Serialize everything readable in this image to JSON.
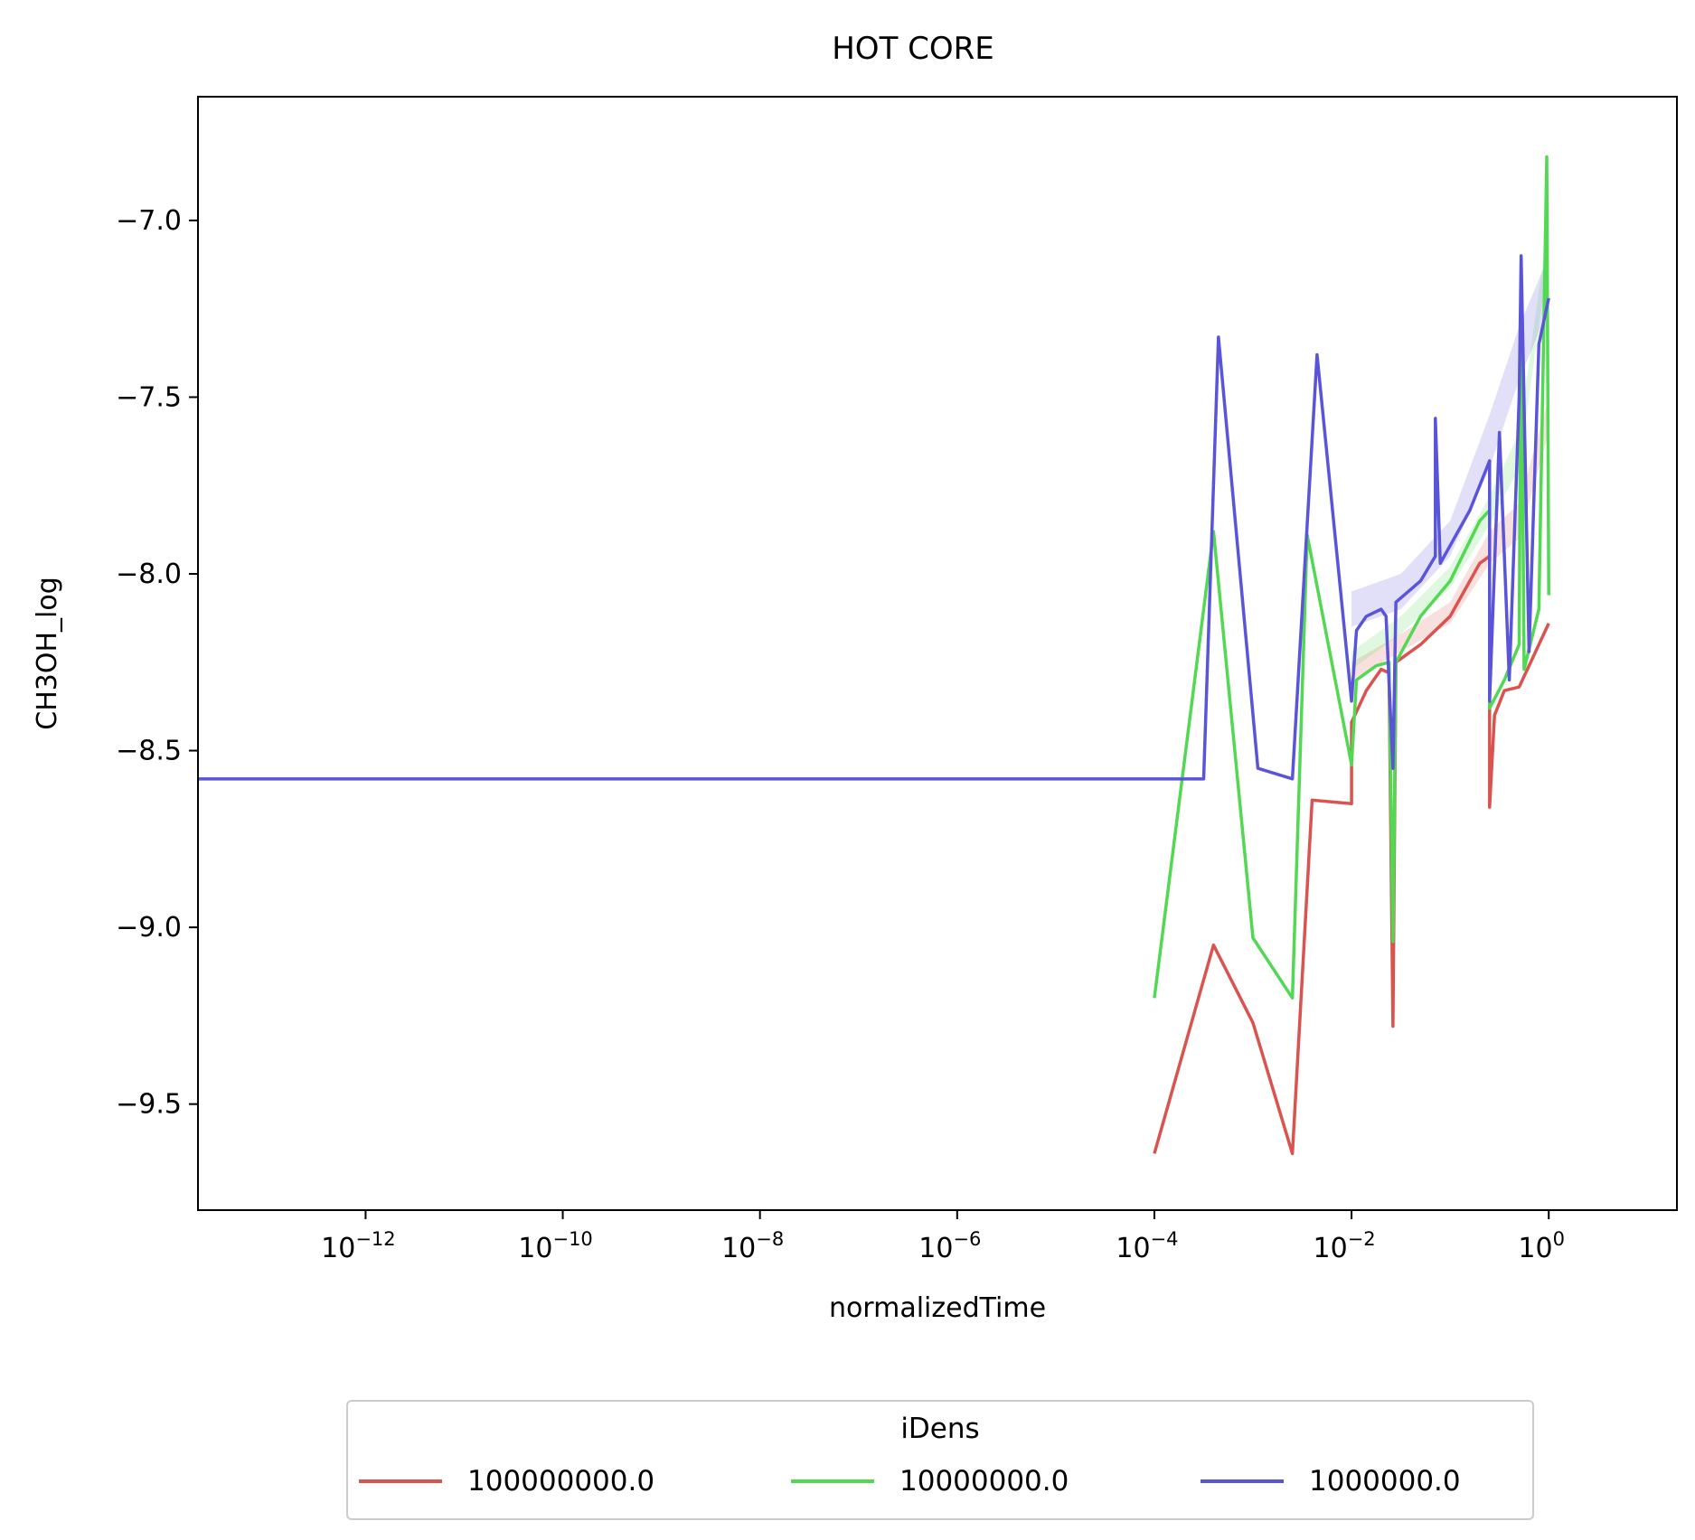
{
  "chart_data": {
    "type": "line",
    "title": "HOT CORE",
    "xlabel": "normalizedTime",
    "ylabel": "CH3OH_log",
    "xscale": "log",
    "xlim_exp": [
      -13.7,
      1.3
    ],
    "ylim": [
      -9.8,
      -6.65
    ],
    "xticks": [
      {
        "exp": -12,
        "base": "10",
        "sup": "−12"
      },
      {
        "exp": -10,
        "base": "10",
        "sup": "−10"
      },
      {
        "exp": -8,
        "base": "10",
        "sup": "−8"
      },
      {
        "exp": -6,
        "base": "10",
        "sup": "−6"
      },
      {
        "exp": -4,
        "base": "10",
        "sup": "−4"
      },
      {
        "exp": -2,
        "base": "10",
        "sup": "−2"
      },
      {
        "exp": 0,
        "base": "10",
        "sup": "0"
      }
    ],
    "yticks": [
      {
        "value": -7.0,
        "label": "−7.0"
      },
      {
        "value": -7.5,
        "label": "−7.5"
      },
      {
        "value": -8.0,
        "label": "−8.0"
      },
      {
        "value": -8.5,
        "label": "−8.5"
      },
      {
        "value": -9.0,
        "label": "−9.0"
      },
      {
        "value": -9.5,
        "label": "−9.5"
      }
    ],
    "grid": false,
    "legend": {
      "title": "iDens",
      "placement": "bottom-center"
    },
    "series": [
      {
        "name": "100000000.0",
        "color": "#d9534f",
        "points": [
          [
            -4,
            -9.64
          ],
          [
            -3.4,
            -9.05
          ],
          [
            -3.0,
            -9.27
          ],
          [
            -2.6,
            -9.64
          ],
          [
            -2.4,
            -8.64
          ],
          [
            -2.0,
            -8.65
          ],
          [
            -2.0,
            -8.42
          ],
          [
            -1.85,
            -8.33
          ],
          [
            -1.7,
            -8.27
          ],
          [
            -1.62,
            -8.28
          ],
          [
            -1.58,
            -9.28
          ],
          [
            -1.55,
            -8.25
          ],
          [
            -1.3,
            -8.2
          ],
          [
            -1.0,
            -8.12
          ],
          [
            -0.7,
            -7.97
          ],
          [
            -0.6,
            -7.95
          ],
          [
            -0.6,
            -8.66
          ],
          [
            -0.55,
            -8.4
          ],
          [
            -0.45,
            -8.33
          ],
          [
            -0.3,
            -8.32
          ],
          [
            -0.15,
            -8.23
          ],
          [
            0,
            -8.14
          ]
        ],
        "band": [
          [
            -2.0,
            -8.3,
            -8.25
          ],
          [
            -1.5,
            -8.22,
            -8.17
          ],
          [
            -1.0,
            -8.14,
            -8.08
          ],
          [
            -0.6,
            -7.97,
            -7.88
          ],
          [
            -0.3,
            -7.9,
            -7.8
          ],
          [
            0,
            -7.6,
            -7.5
          ]
        ]
      },
      {
        "name": "10000000.0",
        "color": "#52d852",
        "points": [
          [
            -4,
            -9.2
          ],
          [
            -3.4,
            -7.88
          ],
          [
            -3.0,
            -9.03
          ],
          [
            -2.6,
            -9.2
          ],
          [
            -2.45,
            -7.89
          ],
          [
            -2.0,
            -8.54
          ],
          [
            -1.95,
            -8.3
          ],
          [
            -1.85,
            -8.28
          ],
          [
            -1.75,
            -8.26
          ],
          [
            -1.62,
            -8.25
          ],
          [
            -1.58,
            -9.04
          ],
          [
            -1.55,
            -8.25
          ],
          [
            -1.3,
            -8.12
          ],
          [
            -1.0,
            -8.02
          ],
          [
            -0.7,
            -7.85
          ],
          [
            -0.6,
            -7.82
          ],
          [
            -0.6,
            -8.38
          ],
          [
            -0.45,
            -8.3
          ],
          [
            -0.3,
            -8.2
          ],
          [
            -0.28,
            -7.15
          ],
          [
            -0.25,
            -8.27
          ],
          [
            -0.1,
            -8.1
          ],
          [
            -0.02,
            -6.82
          ],
          [
            0,
            -8.06
          ]
        ],
        "band": [
          [
            -2.0,
            -8.27,
            -8.22
          ],
          [
            -1.5,
            -8.17,
            -8.12
          ],
          [
            -1.0,
            -8.04,
            -7.98
          ],
          [
            -0.6,
            -7.86,
            -7.78
          ],
          [
            -0.3,
            -7.7,
            -7.6
          ],
          [
            0,
            -7.1,
            -7.0
          ]
        ]
      },
      {
        "name": "1000000.0",
        "color": "#5a55d8",
        "points": [
          [
            -13.7,
            -8.58
          ],
          [
            -4.5,
            -8.58
          ],
          [
            -3.5,
            -8.58
          ],
          [
            -3.35,
            -7.33
          ],
          [
            -2.95,
            -8.55
          ],
          [
            -2.6,
            -8.58
          ],
          [
            -2.35,
            -7.38
          ],
          [
            -2.0,
            -8.36
          ],
          [
            -1.95,
            -8.16
          ],
          [
            -1.85,
            -8.12
          ],
          [
            -1.7,
            -8.1
          ],
          [
            -1.65,
            -8.12
          ],
          [
            -1.58,
            -8.55
          ],
          [
            -1.55,
            -8.08
          ],
          [
            -1.3,
            -8.02
          ],
          [
            -1.15,
            -7.95
          ],
          [
            -1.15,
            -7.56
          ],
          [
            -1.1,
            -7.97
          ],
          [
            -0.8,
            -7.82
          ],
          [
            -0.6,
            -7.68
          ],
          [
            -0.6,
            -8.36
          ],
          [
            -0.5,
            -7.6
          ],
          [
            -0.4,
            -8.3
          ],
          [
            -0.3,
            -7.5
          ],
          [
            -0.28,
            -7.1
          ],
          [
            -0.2,
            -8.22
          ],
          [
            -0.1,
            -7.35
          ],
          [
            0,
            -7.22
          ]
        ],
        "band": [
          [
            -2.0,
            -8.15,
            -8.05
          ],
          [
            -1.5,
            -8.1,
            -8.0
          ],
          [
            -1.0,
            -7.95,
            -7.85
          ],
          [
            -0.6,
            -7.7,
            -7.55
          ],
          [
            -0.3,
            -7.45,
            -7.3
          ],
          [
            0,
            -7.25,
            -7.1
          ]
        ]
      }
    ]
  }
}
